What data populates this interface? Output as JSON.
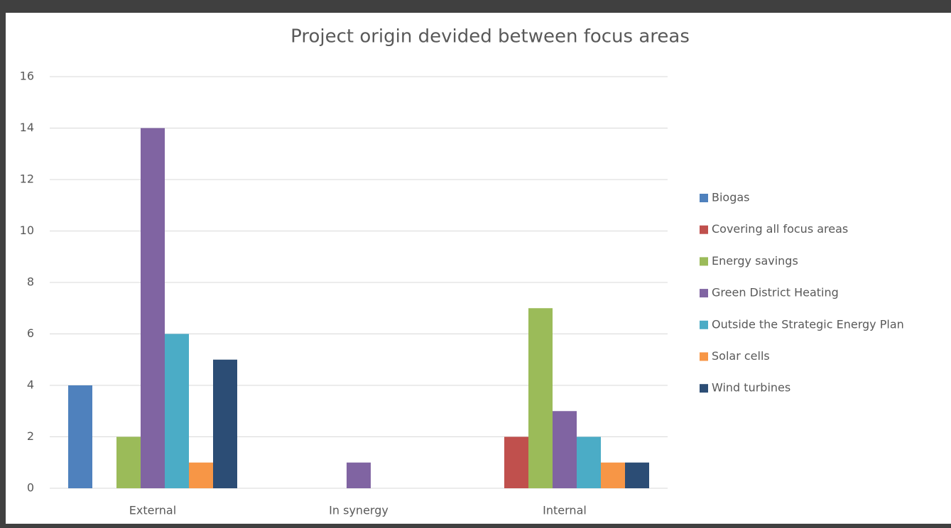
{
  "chart_data": {
    "type": "bar",
    "title": "Project origin devided between focus areas",
    "categories": [
      "External",
      "In synergy",
      "Internal"
    ],
    "series": [
      {
        "name": "Biogas",
        "color": "#4f81bd",
        "values": [
          4,
          0,
          0
        ]
      },
      {
        "name": "Covering all focus areas",
        "color": "#c0504d",
        "values": [
          0,
          0,
          2
        ]
      },
      {
        "name": "Energy savings",
        "color": "#9bbb59",
        "values": [
          2,
          0,
          7
        ]
      },
      {
        "name": "Green District Heating",
        "color": "#8064a2",
        "values": [
          14,
          1,
          3
        ]
      },
      {
        "name": "Outside the Strategic Energy Plan",
        "color": "#4bacc6",
        "values": [
          6,
          0,
          2
        ]
      },
      {
        "name": "Solar cells",
        "color": "#f79646",
        "values": [
          1,
          0,
          1
        ]
      },
      {
        "name": "Wind turbines",
        "color": "#2c4d75",
        "values": [
          5,
          0,
          1
        ]
      }
    ],
    "ylim": [
      0,
      16
    ],
    "yticks": [
      0,
      2,
      4,
      6,
      8,
      10,
      12,
      14,
      16
    ],
    "grid": true,
    "legend": "right"
  }
}
